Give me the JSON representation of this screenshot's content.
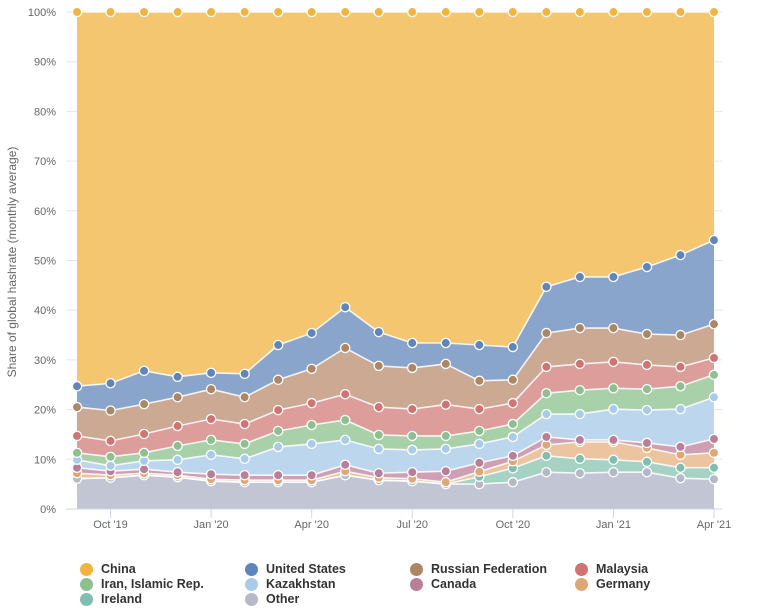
{
  "chart_data": {
    "type": "area",
    "stacked": true,
    "title": "",
    "xlabel": "",
    "ylabel": "Share of global hashrate (monthly average)",
    "ylim": [
      0,
      100
    ],
    "y_ticks": [
      "0%",
      "10%",
      "20%",
      "30%",
      "40%",
      "50%",
      "60%",
      "70%",
      "80%",
      "90%",
      "100%"
    ],
    "y_tick_values": [
      0,
      10,
      20,
      30,
      40,
      50,
      60,
      70,
      80,
      90,
      100
    ],
    "x": [
      "Sep '19",
      "Oct '19",
      "Nov '19",
      "Dec '19",
      "Jan '20",
      "Feb '20",
      "Mar '20",
      "Apr '20",
      "May '20",
      "Jun '20",
      "Jul '20",
      "Aug '20",
      "Sep '20",
      "Oct '20",
      "Nov '20",
      "Dec '20",
      "Jan '21",
      "Feb '21",
      "Mar '21",
      "Apr '21"
    ],
    "x_ticks": [
      {
        "label": "Oct '19",
        "index": 1
      },
      {
        "label": "Jan '20",
        "index": 4
      },
      {
        "label": "Apr '20",
        "index": 7
      },
      {
        "label": "Jul '20",
        "index": 10
      },
      {
        "label": "Oct '20",
        "index": 13
      },
      {
        "label": "Jan '21",
        "index": 16
      },
      {
        "label": "Apr '21",
        "index": 19
      }
    ],
    "grid": true,
    "legend_position": "bottom",
    "stack_order_bottom_to_top": [
      "Other",
      "Ireland",
      "Germany",
      "Canada",
      "Kazakhstan",
      "Iran, Islamic Rep.",
      "Malaysia",
      "Russian Federation",
      "United States",
      "China"
    ],
    "series": [
      {
        "name": "Other",
        "color": "#c2c5d3",
        "marker": "#b5b8c7",
        "values": [
          6.1,
          6.3,
          6.8,
          6.4,
          5.6,
          5.4,
          5.4,
          5.4,
          6.8,
          5.8,
          5.6,
          5.0,
          5.0,
          5.4,
          7.4,
          7.2,
          7.4,
          7.4,
          6.2,
          6.0
        ]
      },
      {
        "name": "Ireland",
        "color": "#a6d2c4",
        "marker": "#7fbfb0",
        "values": [
          0,
          0,
          0,
          0,
          0,
          0,
          0,
          0,
          0,
          0,
          0,
          0,
          1.5,
          2.8,
          3.3,
          2.9,
          2.5,
          2.1,
          2.1,
          2.3
        ]
      },
      {
        "name": "Germany",
        "color": "#ecc4a0",
        "marker": "#e0a774",
        "values": [
          1.1,
          0.5,
          0.4,
          0.4,
          0.4,
          0.4,
          0.4,
          0.4,
          0.8,
          0.5,
          0.5,
          0.4,
          1.0,
          1.4,
          2.2,
          3.4,
          3.6,
          2.8,
          2.6,
          3.0
        ]
      },
      {
        "name": "Canada",
        "color": "#cfa0b3",
        "marker": "#b97f98",
        "values": [
          1.1,
          0.8,
          0.8,
          0.6,
          1.0,
          1.0,
          1.0,
          1.0,
          1.3,
          0.9,
          1.3,
          2.2,
          1.8,
          1.1,
          1.6,
          0.4,
          0.4,
          1.0,
          1.6,
          2.8
        ]
      },
      {
        "name": "Kazakhstan",
        "color": "#bcd6ee",
        "marker": "#a9cbea",
        "values": [
          1.6,
          1.1,
          1.7,
          2.5,
          3.9,
          3.3,
          5.7,
          6.3,
          5.0,
          4.9,
          4.5,
          4.5,
          3.8,
          3.8,
          4.6,
          5.2,
          6.2,
          6.6,
          7.6,
          8.4
        ]
      },
      {
        "name": "Iran, Islamic Rep.",
        "color": "#a8d1a9",
        "marker": "#8cc08e",
        "values": [
          1.4,
          1.8,
          1.6,
          2.8,
          3.0,
          3.0,
          3.2,
          3.8,
          4.0,
          2.8,
          2.8,
          2.6,
          2.6,
          2.6,
          4.2,
          4.8,
          4.2,
          4.2,
          4.6,
          4.5
        ]
      },
      {
        "name": "Malaysia",
        "color": "#dd9d9b",
        "marker": "#d07371",
        "values": [
          3.4,
          3.2,
          3.8,
          4.0,
          4.2,
          4.0,
          4.2,
          4.4,
          5.2,
          5.6,
          5.4,
          6.3,
          4.4,
          4.2,
          5.3,
          5.3,
          5.3,
          4.9,
          3.9,
          3.4
        ]
      },
      {
        "name": "Russian Federation",
        "color": "#cba993",
        "marker": "#ad8663",
        "values": [
          5.8,
          6.1,
          6.0,
          5.8,
          6.0,
          5.4,
          6.1,
          6.9,
          9.3,
          8.3,
          8.3,
          8.2,
          5.7,
          4.7,
          6.8,
          7.2,
          6.8,
          6.2,
          6.4,
          6.8
        ]
      },
      {
        "name": "United States",
        "color": "#8aa5cc",
        "marker": "#5f85bf",
        "values": [
          4.2,
          5.5,
          6.7,
          4.1,
          3.3,
          4.7,
          7.0,
          7.2,
          8.2,
          6.8,
          5.0,
          4.2,
          7.2,
          6.6,
          9.3,
          10.3,
          10.3,
          13.5,
          16.1,
          16.9
        ]
      },
      {
        "name": "China",
        "color": "#f4c670",
        "marker": "#f2b43c",
        "values": [
          75.3,
          74.7,
          72.2,
          73.4,
          72.6,
          72.8,
          67.0,
          64.6,
          59.4,
          64.4,
          66.6,
          66.6,
          67.0,
          67.4,
          55.3,
          53.3,
          53.3,
          51.3,
          48.9,
          45.9
        ]
      }
    ]
  },
  "legend": {
    "items": [
      {
        "label": "China",
        "color": "#f2b43c"
      },
      {
        "label": "United States",
        "color": "#5f85bf"
      },
      {
        "label": "Russian Federation",
        "color": "#ad8663"
      },
      {
        "label": "Malaysia",
        "color": "#d07371"
      },
      {
        "label": "Iran, Islamic Rep.",
        "color": "#8cc08e"
      },
      {
        "label": "Kazakhstan",
        "color": "#a9cbea"
      },
      {
        "label": "Canada",
        "color": "#b97f98"
      },
      {
        "label": "Germany",
        "color": "#e0a774"
      },
      {
        "label": "Ireland",
        "color": "#7fbfb0"
      },
      {
        "label": "Other",
        "color": "#b5b8c7"
      }
    ]
  }
}
